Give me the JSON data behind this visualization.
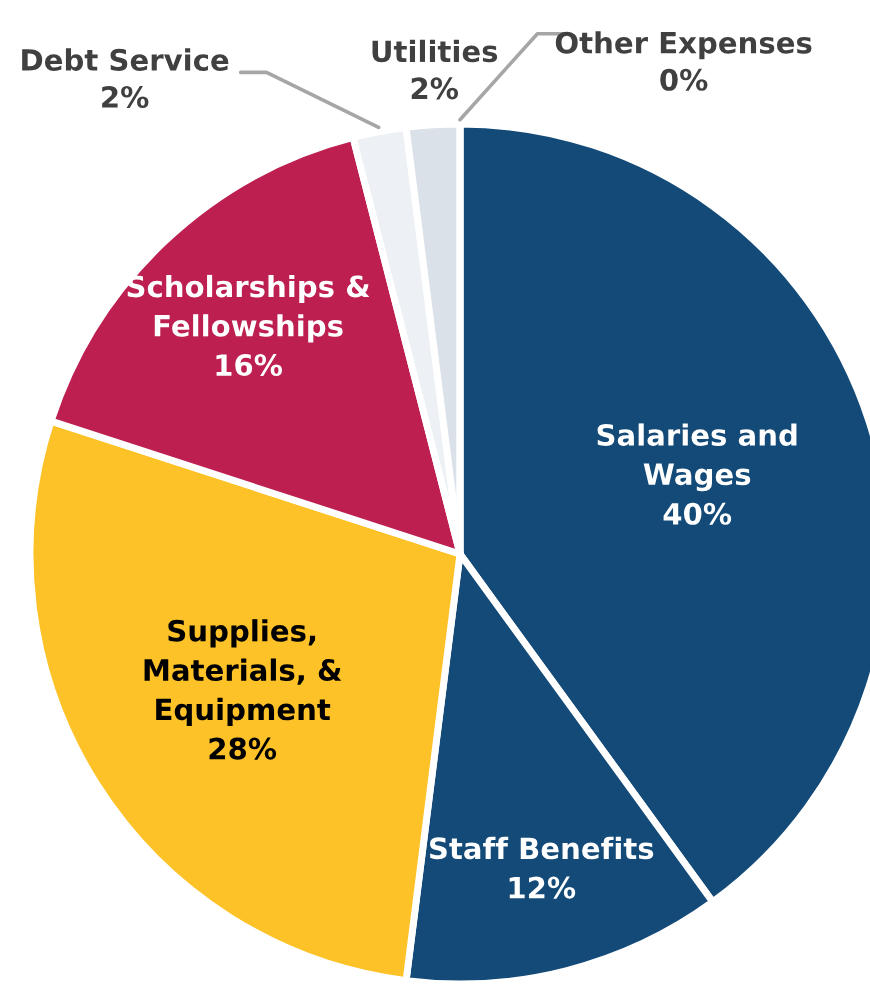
{
  "chart_data": {
    "type": "pie",
    "categories": [
      "Salaries and Wages",
      "Staff Benefits",
      "Supplies, Materials, & Equipment",
      "Scholarships & Fellowships",
      "Debt Service",
      "Utilities",
      "Other Expenses"
    ],
    "values": [
      40,
      12,
      28,
      16,
      2,
      2,
      0
    ],
    "value_labels": [
      "40%",
      "12%",
      "28%",
      "16%",
      "2%",
      "2%",
      "0%"
    ],
    "colors": [
      "#134a78",
      "#134a78",
      "#fdc228",
      "#bc1f50",
      "#edf1f5",
      "#dbe1e8",
      "#dbe1e8"
    ],
    "legend": false
  }
}
